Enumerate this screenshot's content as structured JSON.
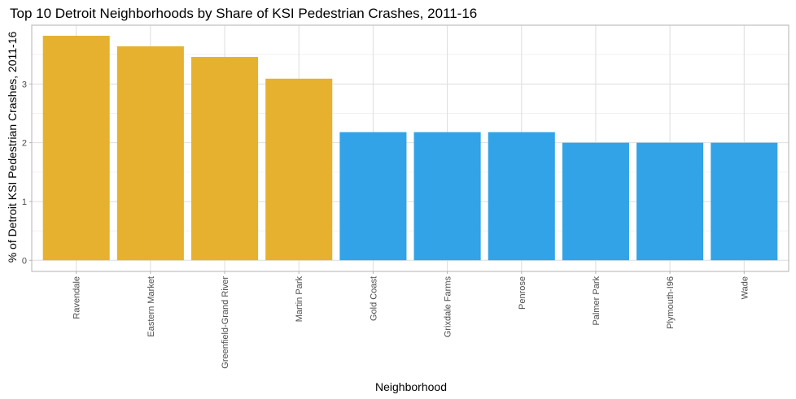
{
  "chart_data": {
    "type": "bar",
    "title": "Top 10 Detroit Neighborhoods by Share of KSI Pedestrian Crashes, 2011-16",
    "xlabel": "Neighborhood",
    "ylabel": "% of Detroit KSI Pedestrian Crashes, 2011-16",
    "categories": [
      "Ravendale",
      "Eastern Market",
      "Greenfield-Grand River",
      "Martin Park",
      "Gold Coast",
      "Grixdale Farms",
      "Penrose",
      "Palmer Park",
      "Plymouth-I96",
      "Wade"
    ],
    "values": [
      3.82,
      3.64,
      3.46,
      3.09,
      2.18,
      2.18,
      2.18,
      2.0,
      2.0,
      2.0
    ],
    "bar_colors": [
      "#E6B12F",
      "#E6B12F",
      "#E6B12F",
      "#E6B12F",
      "#32A3E6",
      "#32A3E6",
      "#32A3E6",
      "#32A3E6",
      "#32A3E6",
      "#32A3E6"
    ],
    "yticks": [
      0,
      1,
      2,
      3
    ],
    "ylim": [
      -0.19,
      4.0
    ],
    "grid": true,
    "legend": "none"
  }
}
